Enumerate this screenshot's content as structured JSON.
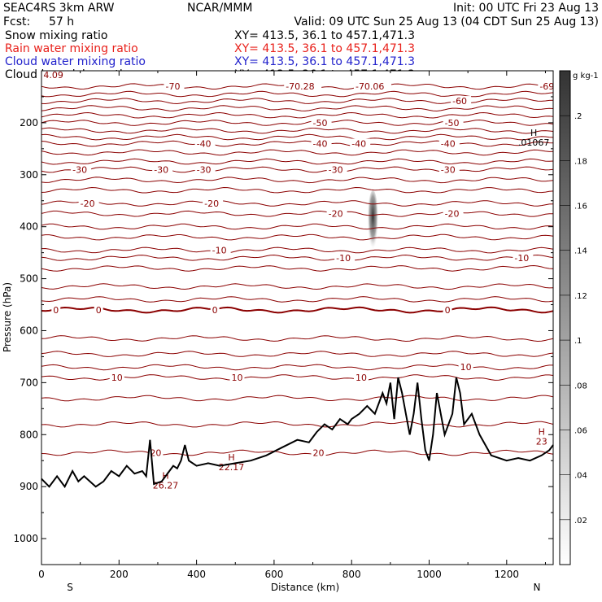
{
  "header": {
    "model": "SEAC4RS  3km ARW",
    "org": "NCAR/MMM",
    "init": "Init: 00 UTC Fri 23 Aug 13",
    "fcst_label": "Fcst:",
    "fcst_value": "57 h",
    "valid": "Valid: 09 UTC Sun 25 Aug 13 (04 CDT Sun 25 Aug 13)"
  },
  "fields": [
    {
      "name": "Snow mixing ratio",
      "xy": "",
      "color": "#000000"
    },
    {
      "name": "Rain water mixing ratio",
      "xy": "XY=  413.5,  36.1  to  457.1,471.3",
      "color": "#e8201a"
    },
    {
      "name": "Cloud water mixing ratio",
      "xy": "XY=  413.5,  36.1  to  457.1,471.3",
      "color": "#2222cc"
    },
    {
      "name": "Cloud ice mixing ratio",
      "xy": "XY=  413.5,  36.1  to  457.1,471.3",
      "color": "#000000"
    }
  ],
  "snow_xy": "XY=  413.5,  36.1  to  457.1,471.3",
  "colors": {
    "contour": "#8b0000",
    "terrain": "#000000",
    "shading": "#303030"
  },
  "chart_data": {
    "type": "contour",
    "xlabel": "Distance (km)",
    "ylabel": "Pressure (hPa)",
    "xlim": [
      0,
      1320
    ],
    "ylim": [
      1050,
      100
    ],
    "y_scale": "linear, inverted",
    "x_ticks": [
      0,
      200,
      400,
      600,
      800,
      1000,
      1200
    ],
    "x_tick_labels": [
      "0",
      "200",
      "400",
      "600",
      "800",
      "1000",
      "1200"
    ],
    "y_ticks": [
      200,
      300,
      400,
      500,
      600,
      700,
      800,
      900,
      1000
    ],
    "y_tick_labels": [
      "200",
      "300",
      "400",
      "500",
      "600",
      "700",
      "800",
      "900",
      "1000"
    ],
    "x_end_labels": {
      "left": "S",
      "right": "N"
    },
    "colorbar": {
      "units": "g kg-1",
      "ticks": [
        0.02,
        0.04,
        0.06,
        0.08,
        0.1,
        0.12,
        0.14,
        0.16,
        0.18,
        0.2
      ],
      "tick_labels": [
        ".02",
        ".04",
        ".06",
        ".08",
        ".1",
        ".12",
        ".14",
        ".16",
        ".18",
        ".2"
      ],
      "range": [
        0,
        0.22
      ]
    },
    "temperature_contours": [
      {
        "p": 130,
        "labels": [
          {
            "x": 320,
            "text": "-70"
          },
          {
            "x": 630,
            "text": "-70.28"
          },
          {
            "x": 810,
            "text": "-70.06"
          },
          {
            "x": 1285,
            "text": "-69"
          }
        ]
      },
      {
        "p": 145,
        "labels": []
      },
      {
        "p": 158,
        "labels": [
          {
            "x": 1060,
            "text": "-60"
          }
        ]
      },
      {
        "p": 172,
        "labels": []
      },
      {
        "p": 186,
        "labels": []
      },
      {
        "p": 200,
        "labels": [
          {
            "x": 700,
            "text": "-50"
          },
          {
            "x": 1040,
            "text": "-50"
          }
        ]
      },
      {
        "p": 215,
        "labels": []
      },
      {
        "p": 228,
        "labels": []
      },
      {
        "p": 240,
        "labels": [
          {
            "x": 400,
            "text": "-40"
          },
          {
            "x": 700,
            "text": "-40"
          },
          {
            "x": 800,
            "text": "-40"
          },
          {
            "x": 1030,
            "text": "-40"
          }
        ]
      },
      {
        "p": 257,
        "labels": []
      },
      {
        "p": 275,
        "labels": []
      },
      {
        "p": 290,
        "labels": [
          {
            "x": 80,
            "text": "-30"
          },
          {
            "x": 290,
            "text": "-30"
          },
          {
            "x": 400,
            "text": "-30"
          },
          {
            "x": 740,
            "text": "-30"
          },
          {
            "x": 1030,
            "text": "-30"
          }
        ]
      },
      {
        "p": 310,
        "labels": []
      },
      {
        "p": 330,
        "labels": []
      },
      {
        "p": 355,
        "labels": [
          {
            "x": 100,
            "text": "-20"
          },
          {
            "x": 420,
            "text": "-20"
          }
        ]
      },
      {
        "p": 375,
        "labels": [
          {
            "x": 740,
            "text": "-20"
          },
          {
            "x": 1040,
            "text": "-20"
          }
        ]
      },
      {
        "p": 400,
        "labels": []
      },
      {
        "p": 420,
        "labels": []
      },
      {
        "p": 445,
        "labels": [
          {
            "x": 440,
            "text": "-10"
          }
        ]
      },
      {
        "p": 460,
        "labels": [
          {
            "x": 760,
            "text": "-10"
          },
          {
            "x": 1220,
            "text": "-10"
          }
        ]
      },
      {
        "p": 480,
        "labels": []
      },
      {
        "p": 515,
        "labels": []
      },
      {
        "p": 540,
        "labels": []
      },
      {
        "p": 560,
        "labels": [
          {
            "x": 30,
            "text": "0"
          },
          {
            "x": 140,
            "text": "0"
          },
          {
            "x": 440,
            "text": "0"
          },
          {
            "x": 1040,
            "text": "0"
          }
        ],
        "bold": true
      },
      {
        "p": 615,
        "labels": []
      },
      {
        "p": 645,
        "labels": []
      },
      {
        "p": 670,
        "labels": [
          {
            "x": 1080,
            "text": "10"
          }
        ]
      },
      {
        "p": 690,
        "labels": [
          {
            "x": 180,
            "text": "10"
          },
          {
            "x": 490,
            "text": "10"
          },
          {
            "x": 810,
            "text": "10"
          }
        ]
      },
      {
        "p": 730,
        "labels": []
      },
      {
        "p": 780,
        "labels": []
      },
      {
        "p": 835,
        "labels": [
          {
            "x": 280,
            "text": "20"
          },
          {
            "x": 700,
            "text": "20"
          }
        ]
      }
    ],
    "highs": [
      {
        "x": 320,
        "p": 885,
        "text": "H",
        "value": "26.27"
      },
      {
        "x": 490,
        "p": 850,
        "text": "H",
        "value": "22.17"
      },
      {
        "x": 1290,
        "p": 800,
        "text": "H",
        "value": "23"
      },
      {
        "x": 1270,
        "p": 225,
        "text": "H",
        "value": ".01067"
      }
    ],
    "extra_labels": [
      {
        "x": 5,
        "p": 108,
        "text": "4.09"
      }
    ],
    "terrain": {
      "x": [
        0,
        20,
        40,
        60,
        80,
        95,
        110,
        140,
        160,
        180,
        200,
        220,
        240,
        260,
        270,
        280,
        290,
        310,
        320,
        340,
        350,
        360,
        370,
        380,
        400,
        430,
        460,
        500,
        540,
        580,
        620,
        660,
        690,
        710,
        730,
        750,
        770,
        790,
        800,
        820,
        840,
        860,
        870,
        880,
        890,
        900,
        910,
        920,
        930,
        940,
        950,
        960,
        970,
        980,
        990,
        1000,
        1010,
        1020,
        1040,
        1060,
        1070,
        1080,
        1090,
        1100,
        1110,
        1130,
        1160,
        1200,
        1230,
        1260,
        1290,
        1310,
        1320
      ],
      "p": [
        885,
        900,
        880,
        900,
        870,
        890,
        880,
        900,
        890,
        870,
        880,
        860,
        875,
        870,
        880,
        810,
        895,
        890,
        880,
        860,
        865,
        850,
        820,
        850,
        860,
        855,
        860,
        855,
        850,
        840,
        825,
        810,
        815,
        795,
        780,
        790,
        770,
        780,
        770,
        760,
        745,
        760,
        740,
        720,
        740,
        700,
        770,
        690,
        720,
        760,
        800,
        760,
        700,
        770,
        830,
        850,
        800,
        720,
        800,
        760,
        690,
        720,
        780,
        770,
        760,
        800,
        840,
        850,
        845,
        850,
        840,
        830,
        820
      ]
    },
    "shading": {
      "x": 855,
      "p_top": 330,
      "p_bottom": 460,
      "peak_p": 380,
      "max_value": 0.19
    }
  }
}
